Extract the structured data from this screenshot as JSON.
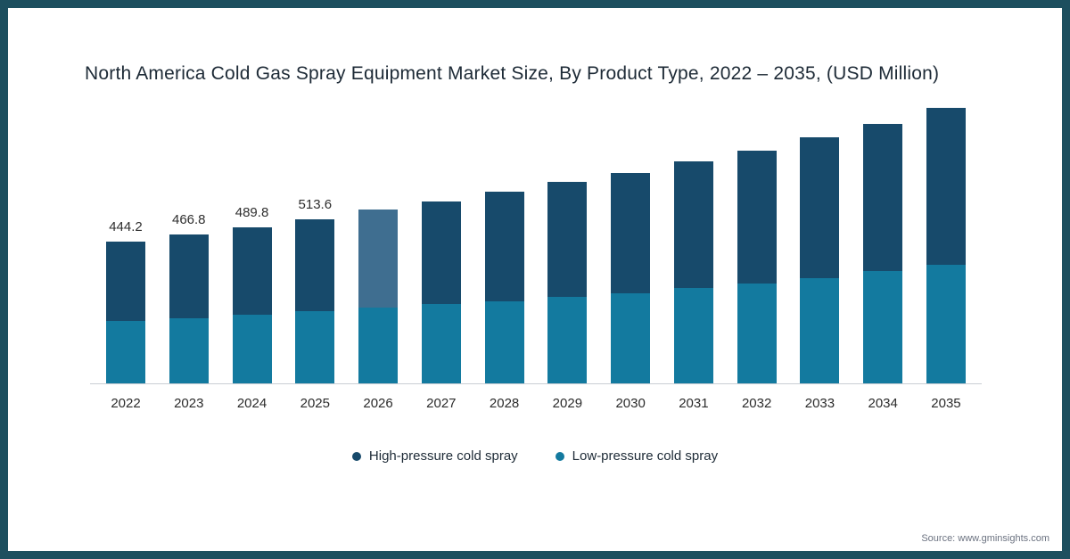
{
  "frame": {
    "border_color": "#1d4f5f",
    "background": "#ffffff"
  },
  "chart_data": {
    "type": "bar",
    "stacked": true,
    "title": "North America Cold Gas Spray Equipment Market Size, By Product Type, 2022 – 2035, (USD Million)",
    "categories": [
      "2022",
      "2023",
      "2024",
      "2025",
      "2026",
      "2027",
      "2028",
      "2029",
      "2030",
      "2031",
      "2032",
      "2033",
      "2034",
      "2035"
    ],
    "series": [
      {
        "name": "High-pressure cold spray",
        "color": "#174a6b",
        "values": [
          249.2,
          261.8,
          274.8,
          285.6,
          307,
          322,
          342,
          360,
          377,
          398,
          417,
          442,
          463,
          493
        ]
      },
      {
        "name": "Low-pressure cold spray",
        "color": "#137a9f",
        "values": [
          195,
          205,
          215,
          228,
          238,
          250,
          258,
          272,
          283,
          298,
          313,
          330,
          352,
          372
        ]
      }
    ],
    "totals": [
      444.2,
      466.8,
      489.8,
      513.6,
      545,
      572,
      600,
      632,
      660,
      696,
      730,
      772,
      815,
      865
    ],
    "total_labels": [
      "444.2",
      "466.8",
      "489.8",
      "513.6",
      "",
      "",
      "",
      "",
      "",
      "",
      "",
      "",
      "",
      ""
    ],
    "highlighted_category": "2026",
    "highlight_color": "#3f6e90",
    "ylim": [
      0,
      920
    ],
    "xlabel": "",
    "ylabel": "",
    "grid": false,
    "legend_position": "bottom"
  },
  "source": "Source: www.gminsights.com"
}
